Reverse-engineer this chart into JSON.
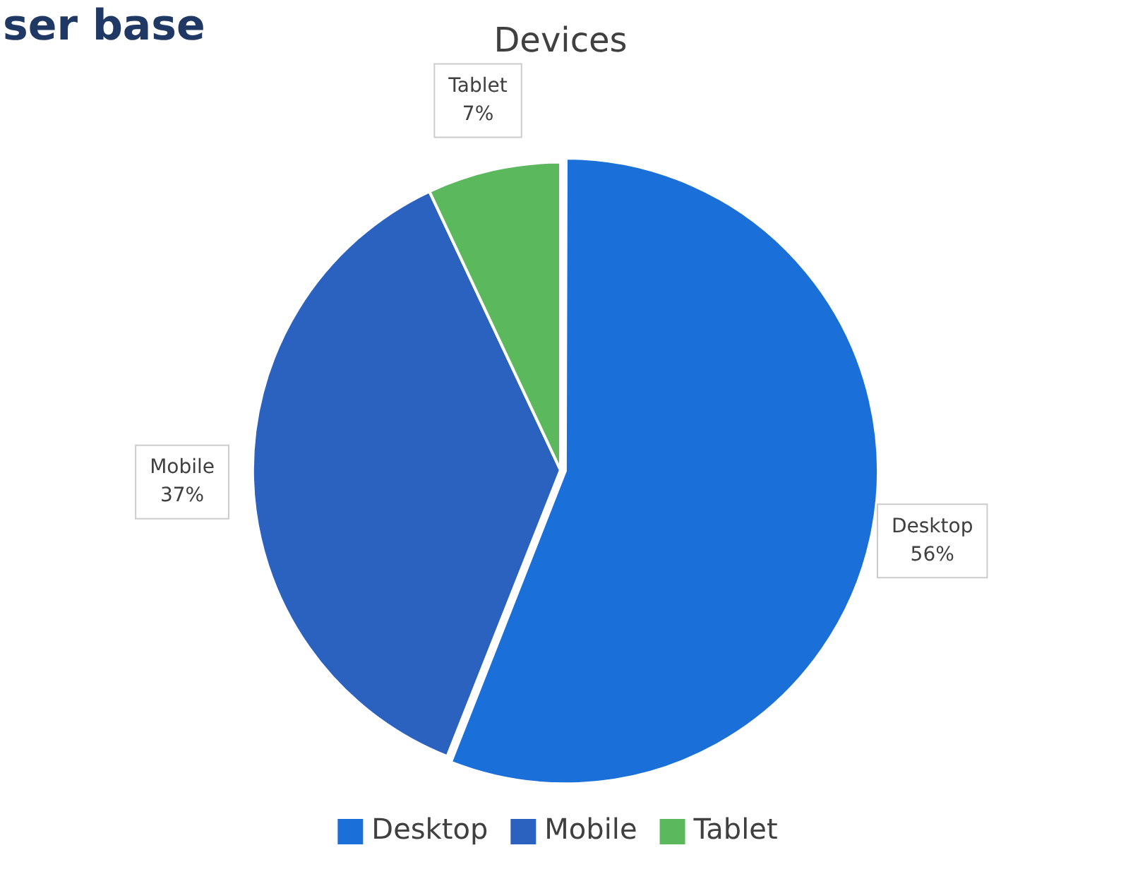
{
  "chart_data": {
    "type": "pie",
    "title": "Devices",
    "annotations": [
      "ser base"
    ],
    "categories": [
      "Desktop",
      "Mobile",
      "Tablet"
    ],
    "values": [
      56,
      37,
      7
    ],
    "value_labels": [
      "56%",
      "37%",
      "7%"
    ],
    "colors": [
      "#1a6fd8",
      "#2b62bf",
      "#5cb85c"
    ],
    "legend": "bottom"
  }
}
